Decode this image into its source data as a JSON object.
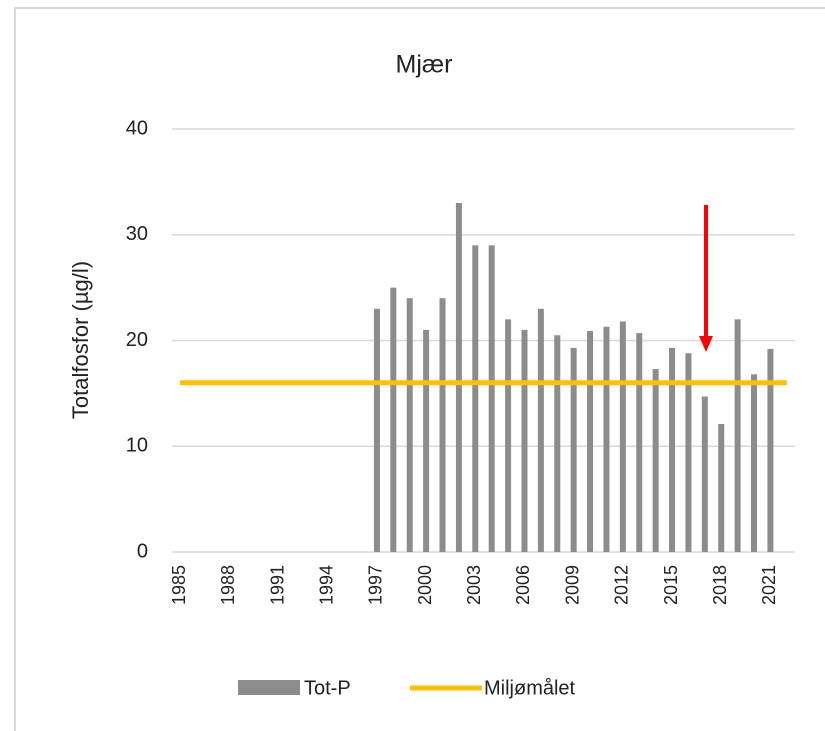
{
  "chart_data": {
    "type": "bar",
    "title": "Mjær",
    "y_label": "Totalfosfor (µg/l)",
    "categories": [
      "1985",
      null,
      null,
      "1988",
      null,
      null,
      "1991",
      null,
      null,
      "1994",
      null,
      null,
      "1997",
      null,
      null,
      "2000",
      null,
      null,
      "2003",
      null,
      null,
      "2006",
      null,
      null,
      "2009",
      null,
      null,
      "2012",
      null,
      null,
      "2015",
      null,
      null,
      "2018",
      null,
      null,
      "2021",
      null
    ],
    "series": [
      {
        "name": "Tot-P",
        "type": "bar",
        "color": "#8c8c8c",
        "values": [
          null,
          null,
          null,
          null,
          null,
          null,
          null,
          null,
          null,
          null,
          null,
          null,
          23,
          25,
          24,
          21,
          24,
          33,
          29,
          29,
          22,
          21,
          23,
          20.5,
          19.3,
          20.9,
          21.3,
          21.8,
          20.7,
          17.3,
          19.3,
          18.8,
          14.7,
          12.1,
          22,
          16.8,
          19.2,
          null
        ]
      },
      {
        "name": "Miljømålet",
        "type": "line",
        "color": "#ffc000",
        "values": [
          16,
          16,
          16,
          16,
          16,
          16,
          16,
          16,
          16,
          16,
          16,
          16,
          16,
          16,
          16,
          16,
          16,
          16,
          16,
          16,
          16,
          16,
          16,
          16,
          16,
          16,
          16,
          16,
          16,
          16,
          16,
          16,
          16,
          16,
          16,
          16,
          16,
          16
        ]
      }
    ],
    "ylim": [
      0,
      40
    ],
    "yticks": [
      0,
      10,
      20,
      30,
      40
    ],
    "grid": true,
    "legend": "bottom"
  }
}
